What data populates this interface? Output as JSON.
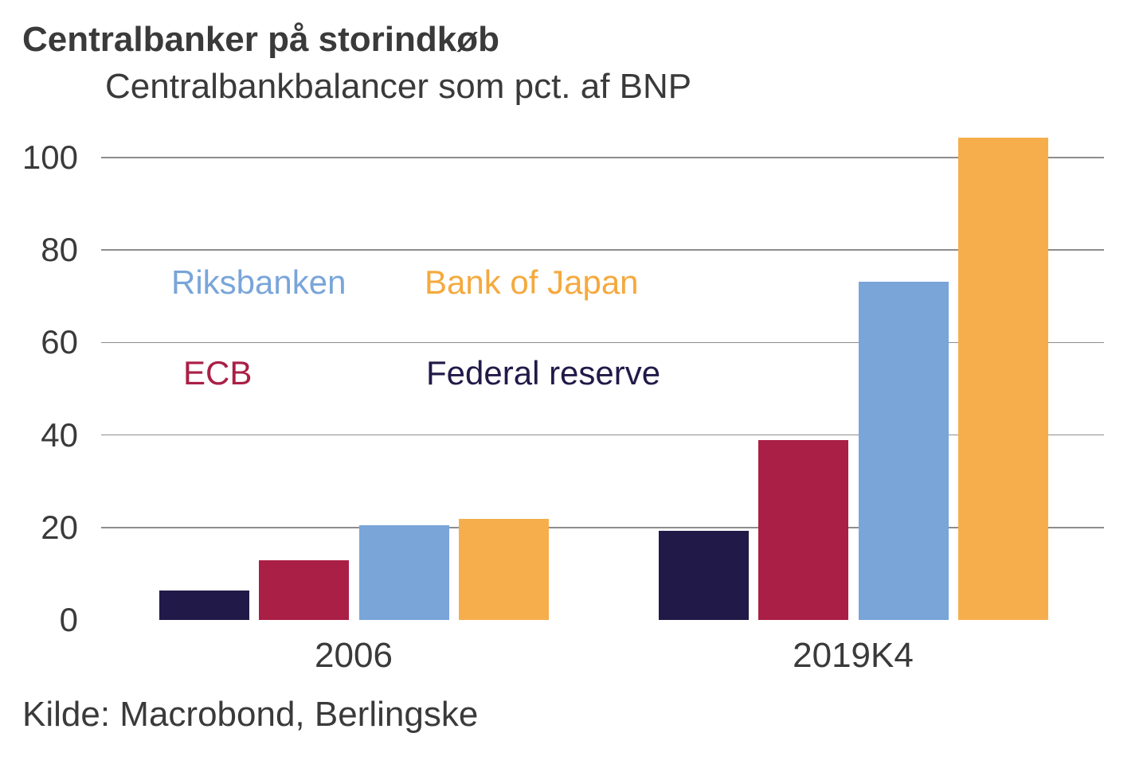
{
  "header": {
    "title": "Centralbanker på storindkøb",
    "subtitle": "Centralbankbalancer som pct. af BNP"
  },
  "source": "Kilde: Macrobond, Berlingske",
  "colors": {
    "federal_reserve": "#211a48",
    "ecb": "#aa1f45",
    "riksbanken": "#79a5d9",
    "bank_of_japan": "#f6ae4c",
    "text": "#3a3a3a",
    "gridline": "#8d8d8d",
    "background": "#ffffff"
  },
  "chart_data": {
    "type": "bar",
    "title": "Centralbanker på storindkøb",
    "subtitle": "Centralbankbalancer som pct. af BNP",
    "xlabel": "",
    "ylabel": "Centralbankbalancer som pct. af BNP",
    "categories": [
      "2006",
      "2019K4"
    ],
    "series": [
      {
        "name": "Federal reserve",
        "color": "#211a48",
        "values": [
          6.3,
          19.3
        ]
      },
      {
        "name": "ECB",
        "color": "#aa1f45",
        "values": [
          12.9,
          38.8
        ]
      },
      {
        "name": "Riksbanken",
        "color": "#79a5d9",
        "values": [
          20.4,
          73.2
        ]
      },
      {
        "name": "Bank of Japan",
        "color": "#f6ae4c",
        "values": [
          21.8,
          104.3
        ]
      }
    ],
    "ylim": [
      0,
      110
    ],
    "yticks": [
      0,
      20,
      40,
      60,
      80,
      100
    ],
    "grid": true,
    "gridlines_for_zero": false,
    "legend_position": "inside-top-left",
    "legend": [
      {
        "label": "Riksbanken",
        "color": "#79a5d9"
      },
      {
        "label": "Bank of Japan",
        "color": "#f5a93d"
      },
      {
        "label": "ECB",
        "color": "#aa1f45"
      },
      {
        "label": "Federal reserve",
        "color": "#211a48"
      }
    ],
    "source": "Kilde: Macrobond, Berlingske"
  }
}
